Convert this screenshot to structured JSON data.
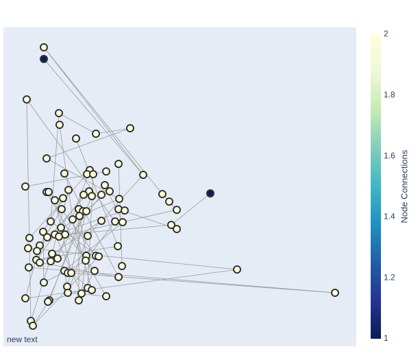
{
  "chart_data": {
    "type": "network",
    "annotation": "new text",
    "colorbar_title": "Node Connections",
    "colorscale": [
      "#081d58",
      "#253494",
      "#225ea8",
      "#1d91c0",
      "#41b6c4",
      "#7fcdbb",
      "#c7e9b4",
      "#edf8d9",
      "#ffffd9"
    ],
    "clim": [
      1,
      2
    ],
    "cticks": [
      1,
      {
        "value": 1.2,
        "label": "1.2"
      },
      {
        "value": 1.4,
        "label": "1.4"
      },
      {
        "value": 1.6,
        "label": "1.6"
      },
      {
        "value": 1.8,
        "label": "1.8"
      },
      2
    ],
    "xlim": [
      5,
      520
    ],
    "ylim": [
      505,
      40
    ],
    "x": [
      64,
      64,
      39,
      86,
      87,
      190,
      140,
      111,
      68,
      173,
      131,
      94,
      127,
      136,
      155,
      209,
      37,
      153,
      100,
      68,
      71,
      130,
      160,
      122,
      134,
      148,
      237,
      307,
      80,
      92,
      174,
      247,
      90,
      115,
      121,
      126,
      173,
      182,
      258,
      116,
      106,
      74,
      148,
      168,
      179,
      250,
      258,
      89,
      63,
      80,
      95,
      86,
      128,
      69,
      43,
      58,
      41,
      172,
      54,
      76,
      126,
      140,
      144,
      84,
      53,
      74,
      58,
      125,
      178,
      42,
      346,
      94,
      99,
      104,
      138,
      173,
      64,
      98,
      128,
      134,
      99,
      119,
      489,
      37,
      155,
      115,
      72,
      70,
      45,
      48
    ],
    "y": [
      69,
      86,
      145,
      165,
      182,
      187,
      195,
      202,
      231,
      239,
      248,
      253,
      254,
      254,
      250,
      255,
      272,
      270,
      277,
      280,
      280,
      279,
      279,
      284,
      286,
      284,
      283,
      282,
      292,
      289,
      290,
      294,
      305,
      305,
      308,
      308,
      305,
      307,
      306,
      315,
      320,
      323,
      322,
      323,
      324,
      328,
      334,
      332,
      338,
      342,
      342,
      345,
      344,
      346,
      347,
      358,
      362,
      359,
      366,
      370,
      373,
      373,
      374,
      377,
      379,
      381,
      383,
      380,
      388,
      390,
      393,
      395,
      398,
      398,
      395,
      404,
      412,
      418,
      420,
      423,
      427,
      428,
      427,
      435,
      432,
      438,
      438,
      440,
      468,
      475
    ],
    "values": [
      2,
      1,
      2,
      2,
      2,
      2,
      2,
      2,
      2,
      2,
      2,
      2,
      2,
      2,
      2,
      2,
      2,
      2,
      2,
      2,
      2,
      2,
      2,
      2,
      2,
      2,
      2,
      1,
      2,
      2,
      2,
      2,
      2,
      2,
      2,
      2,
      2,
      2,
      2,
      2,
      2,
      2,
      2,
      2,
      2,
      2,
      2,
      2,
      2,
      2,
      2,
      2,
      2,
      2,
      2,
      2,
      2,
      2,
      2,
      2,
      2,
      2,
      2,
      2,
      2,
      2,
      2,
      2,
      2,
      2,
      2,
      2,
      2,
      2,
      2,
      2,
      2,
      2,
      2,
      2,
      2,
      2,
      2,
      2,
      2,
      2,
      2,
      2,
      2,
      2
    ],
    "edges": [
      [
        0,
        15
      ],
      [
        0,
        26
      ],
      [
        1,
        15
      ],
      [
        27,
        45
      ],
      [
        2,
        88
      ],
      [
        2,
        43
      ],
      [
        3,
        41
      ],
      [
        4,
        40
      ],
      [
        5,
        8
      ],
      [
        5,
        6
      ],
      [
        7,
        57
      ],
      [
        8,
        30
      ],
      [
        9,
        68
      ],
      [
        10,
        63
      ],
      [
        11,
        75
      ],
      [
        12,
        54
      ],
      [
        13,
        78
      ],
      [
        14,
        16
      ],
      [
        15,
        52
      ],
      [
        70,
        56
      ],
      [
        70,
        83
      ],
      [
        82,
        69
      ],
      [
        82,
        72
      ],
      [
        17,
        44
      ],
      [
        18,
        59
      ],
      [
        19,
        84
      ],
      [
        20,
        61
      ],
      [
        21,
        58
      ],
      [
        22,
        49
      ],
      [
        23,
        64
      ],
      [
        24,
        87
      ],
      [
        25,
        65
      ],
      [
        26,
        31
      ],
      [
        28,
        73
      ],
      [
        29,
        48
      ],
      [
        30,
        39
      ],
      [
        31,
        38
      ],
      [
        32,
        55
      ],
      [
        33,
        85
      ],
      [
        34,
        86
      ],
      [
        35,
        77
      ],
      [
        36,
        46
      ],
      [
        37,
        53
      ],
      [
        38,
        51
      ],
      [
        39,
        60
      ],
      [
        40,
        79
      ],
      [
        41,
        62
      ],
      [
        42,
        66
      ],
      [
        43,
        67
      ],
      [
        44,
        71
      ],
      [
        45,
        50
      ],
      [
        47,
        74
      ],
      [
        48,
        76
      ],
      [
        49,
        81
      ],
      [
        52,
        80
      ],
      [
        55,
        83
      ],
      [
        57,
        64
      ],
      [
        59,
        88
      ],
      [
        61,
        76
      ],
      [
        62,
        89
      ],
      [
        66,
        75
      ],
      [
        67,
        81
      ],
      [
        71,
        77
      ],
      [
        73,
        79
      ],
      [
        74,
        85
      ],
      [
        78,
        87
      ],
      [
        80,
        84
      ],
      [
        86,
        89
      ],
      [
        6,
        3
      ]
    ]
  }
}
